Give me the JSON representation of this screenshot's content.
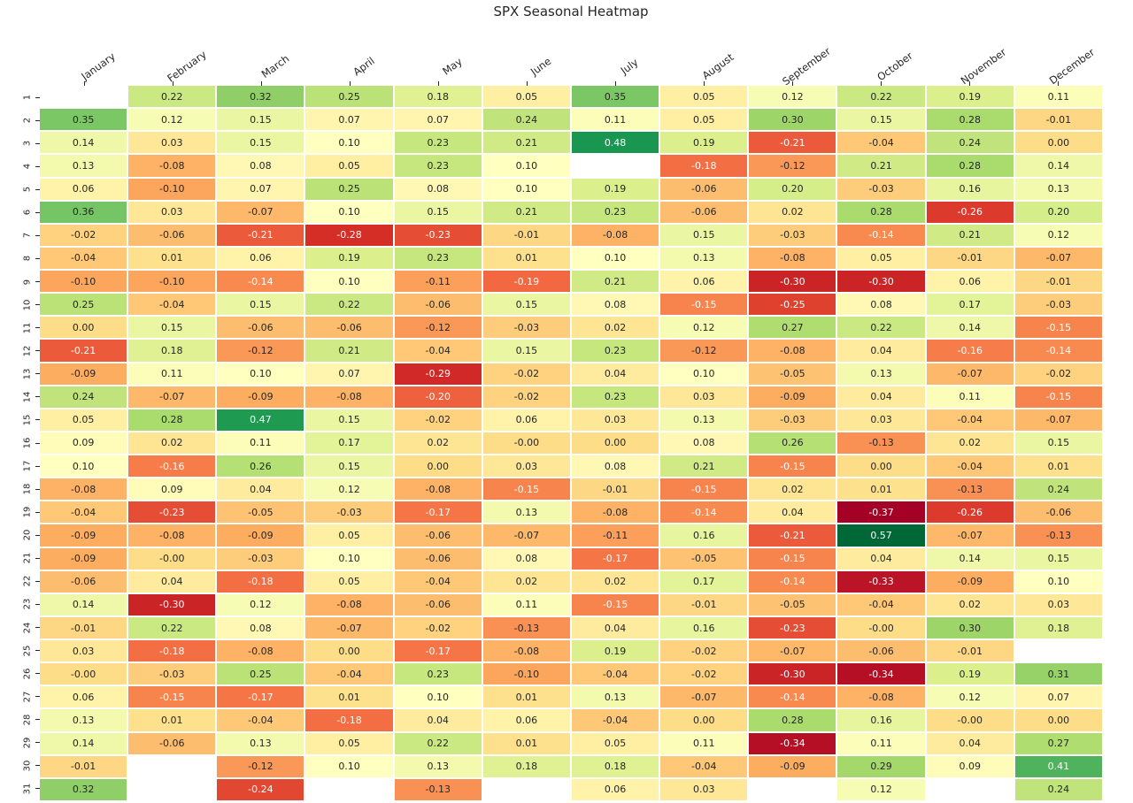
{
  "title": "SPX Seasonal Heatmap",
  "chart_data": {
    "type": "heatmap",
    "title": "SPX Seasonal Heatmap",
    "xlabel": "",
    "ylabel": "",
    "legend": "none",
    "columns": [
      "January",
      "February",
      "March",
      "April",
      "May",
      "June",
      "July",
      "August",
      "September",
      "October",
      "November",
      "December"
    ],
    "rows": [
      "1",
      "2",
      "3",
      "4",
      "5",
      "6",
      "7",
      "8",
      "9",
      "10",
      "11",
      "12",
      "13",
      "14",
      "15",
      "16",
      "17",
      "18",
      "19",
      "20",
      "21",
      "22",
      "23",
      "24",
      "25",
      "26",
      "27",
      "28",
      "29",
      "30",
      "31"
    ],
    "values": [
      [
        "",
        "0.22",
        "0.32",
        "0.25",
        "0.18",
        "0.05",
        "0.35",
        "0.05",
        "0.12",
        "0.22",
        "0.19",
        "0.11"
      ],
      [
        "0.35",
        "0.12",
        "0.15",
        "0.07",
        "0.07",
        "0.24",
        "0.11",
        "0.05",
        "0.30",
        "0.15",
        "0.28",
        "-0.01"
      ],
      [
        "0.14",
        "0.03",
        "0.15",
        "0.10",
        "0.23",
        "0.21",
        "0.48",
        "0.19",
        "-0.21",
        "-0.04",
        "0.24",
        "0.00"
      ],
      [
        "0.13",
        "-0.08",
        "0.08",
        "0.05",
        "0.23",
        "0.10",
        "",
        "-0.18",
        "-0.12",
        "0.21",
        "0.28",
        "0.14"
      ],
      [
        "0.06",
        "-0.10",
        "0.07",
        "0.25",
        "0.08",
        "0.10",
        "0.19",
        "-0.06",
        "0.20",
        "-0.03",
        "0.16",
        "0.13"
      ],
      [
        "0.36",
        "0.03",
        "-0.07",
        "0.10",
        "0.15",
        "0.21",
        "0.23",
        "-0.06",
        "0.02",
        "0.28",
        "-0.26",
        "0.20"
      ],
      [
        "-0.02",
        "-0.06",
        "-0.21",
        "-0.28",
        "-0.23",
        "-0.01",
        "-0.08",
        "0.15",
        "-0.03",
        "-0.14",
        "0.21",
        "0.12"
      ],
      [
        "-0.04",
        "0.01",
        "0.06",
        "0.19",
        "0.23",
        "0.01",
        "0.10",
        "0.13",
        "-0.08",
        "0.05",
        "-0.01",
        "-0.07"
      ],
      [
        "-0.10",
        "-0.10",
        "-0.14",
        "0.10",
        "-0.11",
        "-0.19",
        "0.21",
        "0.06",
        "-0.30",
        "-0.30",
        "0.06",
        "-0.01"
      ],
      [
        "0.25",
        "-0.04",
        "0.15",
        "0.22",
        "-0.06",
        "0.15",
        "0.08",
        "-0.15",
        "-0.25",
        "0.08",
        "0.17",
        "-0.03"
      ],
      [
        "0.00",
        "0.15",
        "-0.06",
        "-0.06",
        "-0.12",
        "-0.03",
        "0.02",
        "0.12",
        "0.27",
        "0.22",
        "0.14",
        "-0.15"
      ],
      [
        "-0.21",
        "0.18",
        "-0.12",
        "0.21",
        "-0.04",
        "0.15",
        "0.23",
        "-0.12",
        "-0.08",
        "0.04",
        "-0.16",
        "-0.14"
      ],
      [
        "-0.09",
        "0.11",
        "0.10",
        "0.07",
        "-0.29",
        "-0.02",
        "0.04",
        "0.10",
        "-0.05",
        "0.13",
        "-0.07",
        "-0.02"
      ],
      [
        "0.24",
        "-0.07",
        "-0.09",
        "-0.08",
        "-0.20",
        "-0.02",
        "0.23",
        "0.03",
        "-0.09",
        "0.04",
        "0.11",
        "-0.15"
      ],
      [
        "0.05",
        "0.28",
        "0.47",
        "0.15",
        "-0.02",
        "0.06",
        "0.03",
        "0.13",
        "-0.03",
        "0.03",
        "-0.04",
        "-0.07"
      ],
      [
        "0.09",
        "0.02",
        "0.11",
        "0.17",
        "0.02",
        "-0.00",
        "0.00",
        "0.08",
        "0.26",
        "-0.13",
        "0.02",
        "0.15"
      ],
      [
        "0.10",
        "-0.16",
        "0.26",
        "0.15",
        "0.00",
        "0.03",
        "0.08",
        "0.21",
        "-0.15",
        "0.00",
        "-0.04",
        "0.01"
      ],
      [
        "-0.08",
        "0.09",
        "0.04",
        "0.12",
        "-0.08",
        "-0.15",
        "-0.01",
        "-0.15",
        "0.02",
        "0.01",
        "-0.13",
        "0.24"
      ],
      [
        "-0.04",
        "-0.23",
        "-0.05",
        "-0.03",
        "-0.17",
        "0.13",
        "-0.08",
        "-0.14",
        "0.04",
        "-0.37",
        "-0.26",
        "-0.06"
      ],
      [
        "-0.09",
        "-0.08",
        "-0.09",
        "0.05",
        "-0.06",
        "-0.07",
        "-0.11",
        "0.16",
        "-0.21",
        "0.57",
        "-0.07",
        "-0.13"
      ],
      [
        "-0.09",
        "-0.00",
        "-0.03",
        "0.10",
        "-0.06",
        "0.08",
        "-0.17",
        "-0.05",
        "-0.15",
        "0.04",
        "0.14",
        "0.15"
      ],
      [
        "-0.06",
        "0.04",
        "-0.18",
        "0.05",
        "-0.04",
        "0.02",
        "0.02",
        "0.17",
        "-0.14",
        "-0.33",
        "-0.09",
        "0.10"
      ],
      [
        "0.14",
        "-0.30",
        "0.12",
        "-0.08",
        "-0.06",
        "0.11",
        "-0.15",
        "-0.01",
        "-0.05",
        "-0.04",
        "0.02",
        "0.03"
      ],
      [
        "-0.01",
        "0.22",
        "0.08",
        "-0.07",
        "-0.02",
        "-0.13",
        "0.04",
        "0.16",
        "-0.23",
        "-0.00",
        "0.30",
        "0.18"
      ],
      [
        "0.03",
        "-0.18",
        "-0.08",
        "0.00",
        "-0.17",
        "-0.08",
        "0.19",
        "-0.02",
        "-0.07",
        "-0.06",
        "-0.01",
        ""
      ],
      [
        "-0.00",
        "-0.03",
        "0.25",
        "-0.04",
        "0.23",
        "-0.10",
        "-0.04",
        "-0.02",
        "-0.30",
        "-0.34",
        "0.19",
        "0.31"
      ],
      [
        "0.06",
        "-0.15",
        "-0.17",
        "0.01",
        "0.10",
        "0.01",
        "0.13",
        "-0.07",
        "-0.14",
        "-0.08",
        "0.12",
        "0.07"
      ],
      [
        "0.13",
        "0.01",
        "-0.04",
        "-0.18",
        "0.04",
        "0.06",
        "-0.04",
        "0.00",
        "0.28",
        "0.16",
        "-0.00",
        "0.00"
      ],
      [
        "0.14",
        "-0.06",
        "0.13",
        "0.05",
        "0.22",
        "0.01",
        "0.05",
        "0.11",
        "-0.34",
        "0.11",
        "0.04",
        "0.27"
      ],
      [
        "-0.01",
        "",
        "-0.12",
        "0.10",
        "0.13",
        "0.18",
        "0.18",
        "-0.04",
        "-0.09",
        "0.29",
        "0.09",
        "0.41"
      ],
      [
        "0.32",
        "",
        "-0.24",
        "",
        "-0.13",
        "",
        "0.06",
        "0.03",
        "",
        "0.12",
        "",
        "0.24"
      ]
    ],
    "value_range": {
      "vmin": -0.37,
      "vmax": 0.57
    },
    "colormap": {
      "name": "RdYlGn",
      "anchors": [
        "#a50026",
        "#d73027",
        "#f46d43",
        "#fdae61",
        "#fee08b",
        "#ffffbf",
        "#d9ef8b",
        "#a6d96a",
        "#66bd63",
        "#1a9850",
        "#006837"
      ]
    },
    "colors": {
      "background": "#ffffff",
      "cell_gap": "#ffffff",
      "empty_cell": "#ffffff",
      "annotation_dark": "#262626",
      "annotation_light": "#ffffff",
      "tick": "#262626",
      "title": "#262626"
    }
  }
}
